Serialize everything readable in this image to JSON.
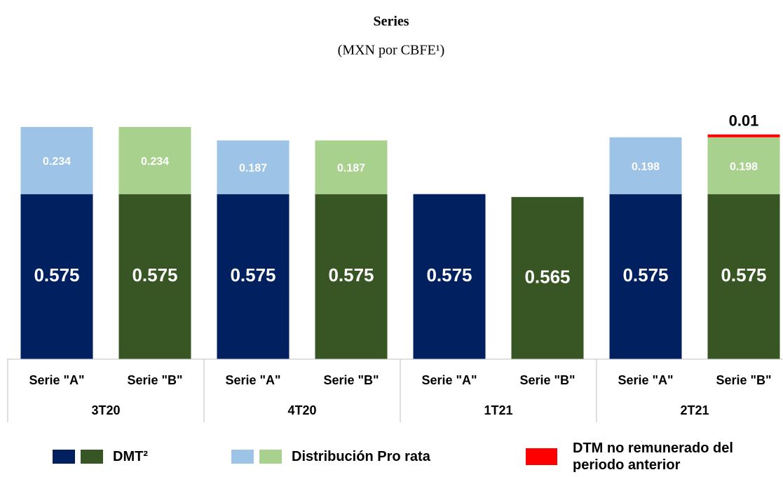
{
  "chart_data": {
    "type": "stacked_bar",
    "title": "Series",
    "subtitle": "(MXN por CBFE¹)",
    "categories": [
      "Serie \"A\"",
      "Serie \"B\"",
      "Serie \"A\"",
      "Serie \"B\"",
      "Serie \"A\"",
      "Serie \"B\"",
      "Serie \"A\"",
      "Serie \"B\""
    ],
    "group_labels": [
      "3T20",
      "4T20",
      "1T21",
      "2T21"
    ],
    "series": [
      {
        "name": "DMT²",
        "colors": [
          "#002060",
          "#375623",
          "#002060",
          "#375623",
          "#002060",
          "#375623",
          "#002060",
          "#375623"
        ],
        "values": [
          0.575,
          0.575,
          0.575,
          0.575,
          0.575,
          0.565,
          0.575,
          0.575
        ]
      },
      {
        "name": "Distribución Pro rata",
        "colors": [
          "#9dc3e6",
          "#a9d18e",
          "#9dc3e6",
          "#a9d18e",
          "#9dc3e6",
          "#a9d18e",
          "#9dc3e6",
          "#a9d18e"
        ],
        "values": [
          0.234,
          0.234,
          0.187,
          0.187,
          null,
          null,
          0.198,
          0.198
        ]
      },
      {
        "name": "DTM no remunerado del periodo anterior",
        "color": "#ff0000",
        "values": [
          null,
          null,
          null,
          null,
          null,
          null,
          null,
          0.01
        ]
      }
    ]
  }
}
